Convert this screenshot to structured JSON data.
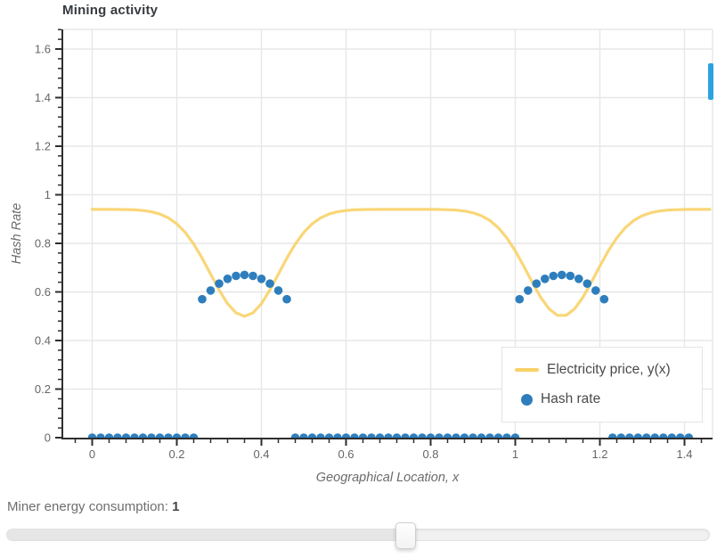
{
  "chart": {
    "title": "Mining activity"
  },
  "chart_data": {
    "type": "line+scatter",
    "title": "Mining activity",
    "xlabel": "Geographical Location, x",
    "ylabel": "Hash Rate",
    "xlim": [
      -0.07,
      1.466
    ],
    "ylim": [
      0,
      1.681
    ],
    "grid": true,
    "legend_position": "bottom-right",
    "x_ticks": {
      "values": [
        0,
        0.2,
        0.4,
        0.6,
        0.8,
        1,
        1.2,
        1.4
      ],
      "labels": [
        "0",
        "0.2",
        "0.4",
        "0.6",
        "0.8",
        "1",
        "1.2",
        "1.4"
      ]
    },
    "y_ticks": {
      "values": [
        0,
        0.2,
        0.4,
        0.6,
        0.8,
        1,
        1.2,
        1.4,
        1.6
      ],
      "labels": [
        "0",
        "0.2",
        "0.4",
        "0.6",
        "0.8",
        "1",
        "1.2",
        "1.4",
        "1.6"
      ]
    },
    "minor_tick_step": 0.04,
    "series": [
      {
        "name": "Electricity price, y(x)",
        "type": "line",
        "color": "#f8d268",
        "x": [
          0,
          0.02,
          0.04,
          0.06,
          0.08,
          0.1,
          0.12,
          0.14,
          0.16,
          0.18,
          0.2,
          0.22,
          0.24,
          0.26,
          0.28,
          0.3,
          0.32,
          0.34,
          0.36,
          0.38,
          0.4,
          0.42,
          0.44,
          0.46,
          0.48,
          0.5,
          0.52,
          0.54,
          0.56,
          0.58,
          0.6,
          0.62,
          0.64,
          0.66,
          0.68,
          0.7,
          0.72,
          0.74,
          0.76,
          0.78,
          0.8,
          0.82,
          0.84,
          0.86,
          0.88,
          0.9,
          0.92,
          0.94,
          0.96,
          0.98,
          1.0,
          1.02,
          1.04,
          1.06,
          1.08,
          1.1,
          1.12,
          1.14,
          1.16,
          1.18,
          1.2,
          1.22,
          1.24,
          1.26,
          1.28,
          1.3,
          1.32,
          1.34,
          1.36,
          1.38,
          1.4,
          1.42,
          1.44,
          1.46
        ],
        "y": [
          0.94,
          0.9399,
          0.9399,
          0.9396,
          0.939,
          0.9378,
          0.9351,
          0.93,
          0.9207,
          0.905,
          0.8805,
          0.8449,
          0.7971,
          0.7386,
          0.6731,
          0.6079,
          0.5517,
          0.5136,
          0.5,
          0.5136,
          0.5517,
          0.6079,
          0.6731,
          0.7386,
          0.7971,
          0.8449,
          0.8805,
          0.905,
          0.9207,
          0.93,
          0.9351,
          0.9378,
          0.939,
          0.9396,
          0.9399,
          0.9399,
          0.94,
          0.94,
          0.94,
          0.9399,
          0.9398,
          0.9394,
          0.9385,
          0.9367,
          0.933,
          0.926,
          0.9138,
          0.894,
          0.8641,
          0.8225,
          0.769,
          0.7063,
          0.6399,
          0.5781,
          0.5299,
          0.5034,
          0.5034,
          0.5299,
          0.5781,
          0.6399,
          0.7063,
          0.769,
          0.8225,
          0.8641,
          0.894,
          0.9138,
          0.926,
          0.933,
          0.9367,
          0.9385,
          0.9394,
          0.9398,
          0.9399,
          0.94
        ]
      },
      {
        "name": "Hash rate",
        "type": "scatter",
        "color": "#2e7ebd",
        "x": [
          0,
          0.02,
          0.04,
          0.06,
          0.08,
          0.1,
          0.12,
          0.14,
          0.16,
          0.18,
          0.2,
          0.22,
          0.24,
          0.26,
          0.28,
          0.3,
          0.32,
          0.34,
          0.36,
          0.38,
          0.4,
          0.42,
          0.44,
          0.46,
          0.48,
          0.5,
          0.52,
          0.54,
          0.56,
          0.58,
          0.6,
          0.62,
          0.64,
          0.66,
          0.68,
          0.7,
          0.72,
          0.74,
          0.76,
          0.78,
          0.8,
          0.82,
          0.84,
          0.86,
          0.88,
          0.9,
          0.92,
          0.94,
          0.96,
          0.98,
          1.0,
          1.01,
          1.03,
          1.05,
          1.07,
          1.09,
          1.11,
          1.13,
          1.15,
          1.17,
          1.19,
          1.21,
          1.23,
          1.25,
          1.27,
          1.29,
          1.31,
          1.33,
          1.35,
          1.37,
          1.39,
          1.41
        ],
        "y": [
          0,
          0,
          0,
          0,
          0,
          0,
          0,
          0,
          0,
          0,
          0,
          0,
          0,
          0.57,
          0.606,
          0.634,
          0.654,
          0.666,
          0.67,
          0.666,
          0.654,
          0.634,
          0.606,
          0.57,
          0,
          0,
          0,
          0,
          0,
          0,
          0,
          0,
          0,
          0,
          0,
          0,
          0,
          0,
          0,
          0,
          0,
          0,
          0,
          0,
          0,
          0,
          0,
          0,
          0,
          0,
          0,
          0.57,
          0.606,
          0.634,
          0.654,
          0.666,
          0.67,
          0.666,
          0.654,
          0.634,
          0.606,
          0.57,
          0,
          0,
          0,
          0,
          0,
          0,
          0,
          0,
          0,
          0
        ]
      }
    ]
  },
  "controls": {
    "label": "Miner energy consumption: ",
    "value": "1"
  },
  "colors": {
    "grid": "#e7e7e7",
    "axis": "#2e2e2e",
    "tick_label": "#666666",
    "scroll_thumb": "#2aa3e0"
  }
}
